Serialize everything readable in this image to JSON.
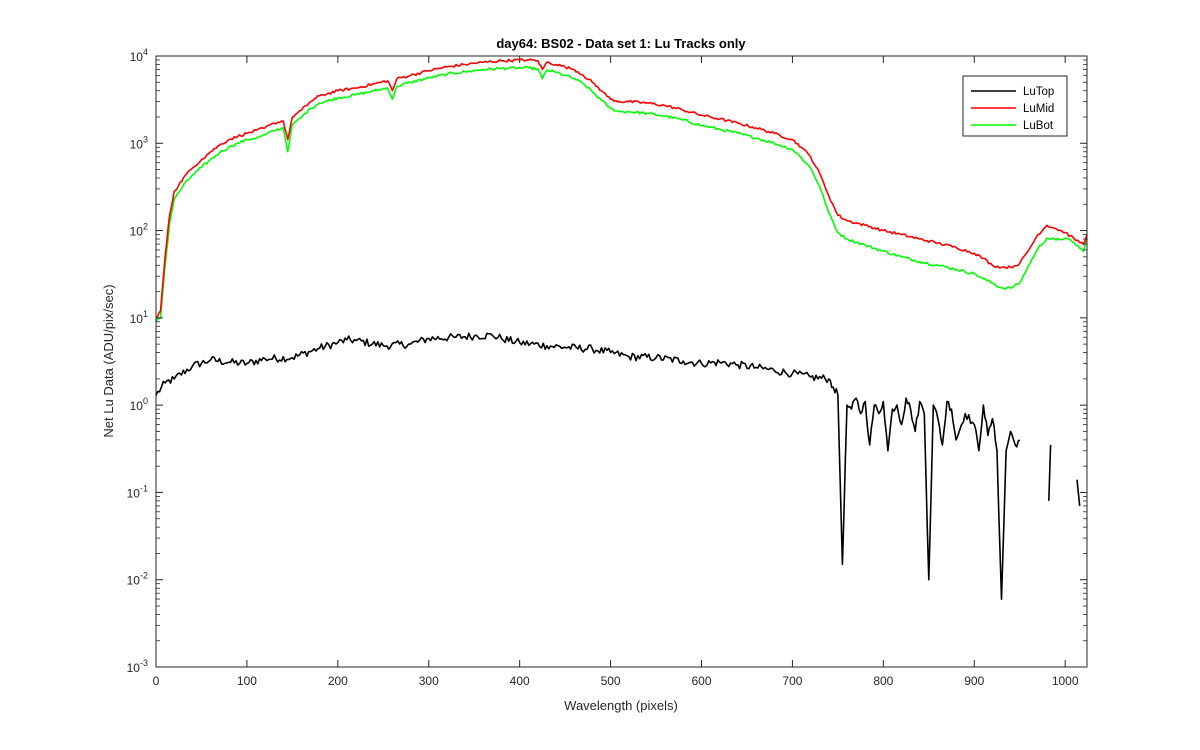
{
  "chart_data": {
    "type": "line",
    "title": "day64: BS02 - Data set 1: Lu Tracks only",
    "xlabel": "Wavelength (pixels)",
    "ylabel": "Net Lu Data (ADU/pix/sec)",
    "xlim": [
      0,
      1024
    ],
    "ylim": [
      0.001,
      10000
    ],
    "yscale": "log",
    "xticks": [
      0,
      100,
      200,
      300,
      400,
      500,
      600,
      700,
      800,
      900,
      1000
    ],
    "yticks": [
      {
        "base": "10",
        "exp": "4",
        "value": 10000
      },
      {
        "base": "10",
        "exp": "3",
        "value": 1000
      },
      {
        "base": "10",
        "exp": "2",
        "value": 100
      },
      {
        "base": "10",
        "exp": "1",
        "value": 10
      },
      {
        "base": "10",
        "exp": "0",
        "value": 1
      },
      {
        "base": "10",
        "exp": "-1",
        "value": 0.1
      },
      {
        "base": "10",
        "exp": "-2",
        "value": 0.01
      },
      {
        "base": "10",
        "exp": "-3",
        "value": 0.001
      }
    ],
    "legend": {
      "position": "top-right"
    },
    "series": [
      {
        "name": "LuTop",
        "color": "#000000",
        "x": [
          0,
          10,
          20,
          40,
          60,
          80,
          100,
          120,
          150,
          180,
          200,
          210,
          220,
          250,
          280,
          300,
          330,
          350,
          370,
          380,
          400,
          430,
          450,
          480,
          500,
          520,
          550,
          580,
          600,
          620,
          640,
          660,
          680,
          700,
          720,
          740,
          745,
          750,
          755,
          760,
          765,
          770,
          775,
          780,
          785,
          790,
          795,
          800,
          805,
          810,
          815,
          820,
          825,
          830,
          835,
          840,
          845,
          850,
          855,
          860,
          865,
          870,
          875,
          880,
          890,
          900,
          905,
          910,
          915,
          920,
          925,
          930,
          935,
          940,
          945,
          950
        ],
        "y": [
          1.3,
          1.8,
          2.0,
          2.8,
          3.3,
          3.1,
          3.0,
          3.4,
          3.5,
          4.5,
          5.2,
          5.6,
          5.5,
          4.8,
          5.0,
          5.8,
          6.0,
          6.2,
          6.3,
          5.8,
          5.2,
          4.8,
          4.6,
          4.4,
          4.0,
          3.6,
          3.5,
          3.2,
          3.0,
          3.1,
          2.9,
          2.7,
          2.5,
          2.3,
          2.1,
          2.0,
          1.6,
          1.3,
          0.015,
          1.0,
          0.9,
          1.2,
          0.8,
          1.1,
          0.35,
          1.0,
          0.8,
          1.1,
          0.3,
          0.9,
          1.0,
          0.6,
          1.2,
          0.9,
          0.5,
          1.1,
          0.8,
          0.01,
          1.0,
          0.7,
          0.35,
          1.1,
          0.9,
          0.4,
          0.8,
          0.6,
          0.3,
          1.0,
          0.45,
          0.7,
          0.3,
          0.006,
          0.3,
          0.5,
          0.35,
          0.4
        ],
        "segments": [
          {
            "x": [
              982,
              984
            ],
            "y": [
              0.08,
              0.35
            ]
          },
          {
            "x": [
              1013,
              1016
            ],
            "y": [
              0.14,
              0.07
            ]
          }
        ]
      },
      {
        "name": "LuMid",
        "color": "#ff0000",
        "x": [
          0,
          5,
          10,
          15,
          20,
          25,
          30,
          40,
          50,
          60,
          70,
          80,
          90,
          100,
          110,
          120,
          130,
          140,
          145,
          150,
          155,
          160,
          170,
          180,
          200,
          220,
          240,
          255,
          260,
          265,
          280,
          300,
          320,
          340,
          360,
          380,
          400,
          410,
          420,
          425,
          430,
          440,
          450,
          460,
          470,
          480,
          490,
          500,
          510,
          520,
          540,
          560,
          580,
          600,
          620,
          640,
          660,
          680,
          700,
          710,
          720,
          730,
          740,
          750,
          760,
          780,
          800,
          820,
          840,
          860,
          880,
          900,
          910,
          920,
          930,
          940,
          950,
          960,
          970,
          980,
          990,
          1000,
          1010,
          1020,
          1024
        ],
        "y": [
          10,
          12,
          50,
          150,
          280,
          330,
          400,
          520,
          650,
          800,
          950,
          1100,
          1200,
          1300,
          1400,
          1500,
          1700,
          1800,
          1100,
          2000,
          2200,
          2400,
          3000,
          3500,
          4000,
          4300,
          4800,
          5200,
          4000,
          5500,
          6000,
          6800,
          7500,
          8000,
          8500,
          8800,
          9000,
          9000,
          8800,
          7000,
          8500,
          8000,
          7500,
          7000,
          6000,
          5000,
          4000,
          3200,
          3000,
          3000,
          2900,
          2700,
          2400,
          2100,
          1900,
          1700,
          1500,
          1300,
          1100,
          900,
          700,
          450,
          250,
          150,
          130,
          115,
          100,
          90,
          80,
          72,
          64,
          55,
          48,
          40,
          38,
          38,
          42,
          60,
          90,
          115,
          105,
          95,
          80,
          70,
          90
        ]
      },
      {
        "name": "LuBot",
        "color": "#00ff00",
        "x": [
          0,
          5,
          10,
          15,
          20,
          25,
          30,
          40,
          50,
          60,
          70,
          80,
          90,
          100,
          110,
          120,
          130,
          140,
          145,
          150,
          155,
          160,
          170,
          180,
          200,
          220,
          240,
          255,
          260,
          265,
          280,
          300,
          320,
          340,
          360,
          380,
          400,
          410,
          420,
          425,
          430,
          440,
          450,
          460,
          470,
          480,
          490,
          500,
          510,
          520,
          540,
          560,
          580,
          600,
          620,
          640,
          660,
          680,
          700,
          710,
          720,
          730,
          740,
          750,
          760,
          780,
          800,
          820,
          840,
          860,
          880,
          900,
          910,
          920,
          930,
          940,
          950,
          960,
          970,
          980,
          990,
          1000,
          1010,
          1020,
          1024
        ],
        "y": [
          9,
          10,
          40,
          120,
          230,
          270,
          330,
          430,
          530,
          650,
          780,
          900,
          1000,
          1100,
          1150,
          1250,
          1400,
          1500,
          800,
          1650,
          1800,
          2000,
          2500,
          2900,
          3300,
          3600,
          4000,
          4300,
          3200,
          4500,
          5000,
          5600,
          6200,
          6600,
          7000,
          7200,
          7300,
          7300,
          7100,
          5500,
          6900,
          6500,
          6000,
          5500,
          4800,
          3900,
          3100,
          2500,
          2300,
          2300,
          2200,
          2050,
          1850,
          1600,
          1450,
          1300,
          1150,
          1000,
          850,
          680,
          520,
          320,
          160,
          95,
          80,
          68,
          58,
          50,
          44,
          40,
          36,
          32,
          28,
          25,
          22,
          22,
          25,
          40,
          62,
          82,
          78,
          82,
          72,
          58,
          80
        ]
      }
    ]
  }
}
